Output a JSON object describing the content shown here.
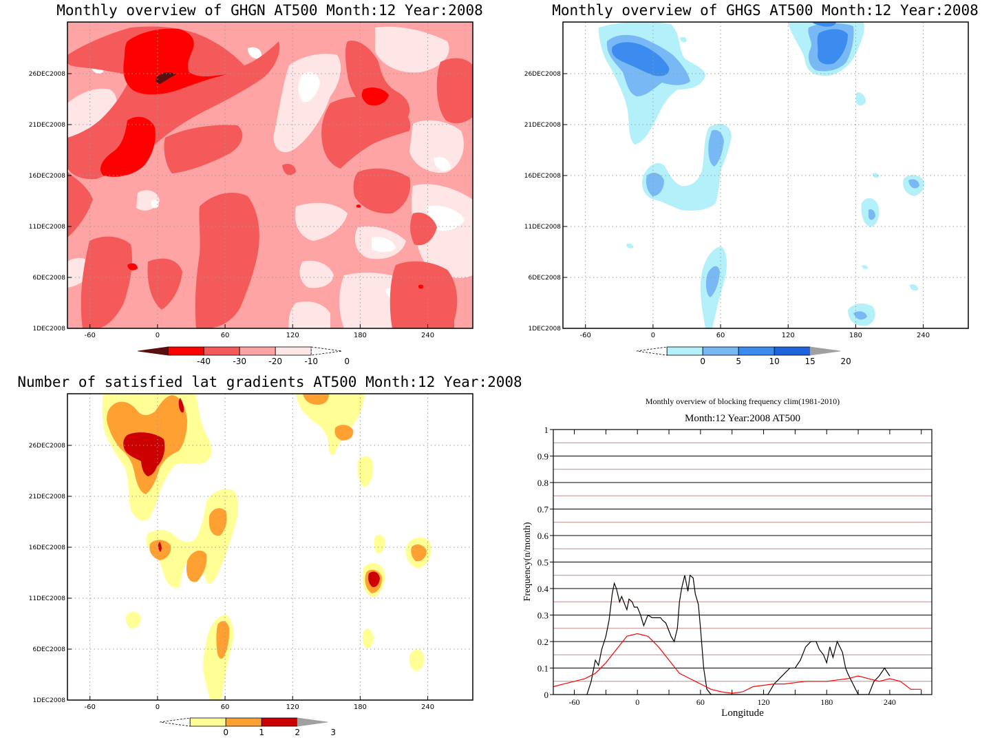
{
  "chart_data": [
    {
      "type": "heatmap",
      "title": "Monthly overview of GHGN AT500 Month:12 Year:2008",
      "y_ticks": [
        "26DEC2008",
        "21DEC2008",
        "16DEC2008",
        "11DEC2008",
        "6DEC2008",
        "1DEC2008"
      ],
      "x_ticks": [
        "-60",
        "0",
        "60",
        "120",
        "180",
        "240"
      ],
      "xlim": [
        -80,
        280
      ],
      "colorbar": {
        "ticks": [
          "-40",
          "-30",
          "-20",
          "-10",
          "0"
        ],
        "levels": [
          -40,
          -30,
          -20,
          -10,
          0
        ],
        "colors": [
          "#5a0f0f",
          "#ff0000",
          "#f45a5a",
          "#ffa4a4",
          "#ffe6e6",
          "#ffffff"
        ]
      },
      "colors": {
        "base": "#ffa4a4",
        "light": "#ffe6e6",
        "medium": "#f45a5a",
        "strong": "#ff0000",
        "darkest": "#5a0f0f"
      }
    },
    {
      "type": "heatmap",
      "title": "Monthly overview of GHGS AT500 Month:12 Year:2008",
      "y_ticks": [
        "26DEC2008",
        "21DEC2008",
        "16DEC2008",
        "11DEC2008",
        "6DEC2008",
        "1DEC2008"
      ],
      "x_ticks": [
        "-60",
        "0",
        "60",
        "120",
        "180",
        "240"
      ],
      "xlim": [
        -80,
        280
      ],
      "colorbar": {
        "ticks": [
          "0",
          "5",
          "10",
          "15",
          "20"
        ],
        "levels": [
          0,
          5,
          10,
          15,
          20
        ],
        "colors": [
          "#ffffff",
          "#b4f0fa",
          "#78b9f5",
          "#3c8cf0",
          "#1e64dc",
          "#a0a0a0"
        ]
      },
      "colors": {
        "light": "#b4f0fa",
        "medium": "#78b9f5",
        "strong": "#3c8cf0",
        "darkest": "#1e64dc"
      }
    },
    {
      "type": "heatmap",
      "title": "Number of satisfied lat gradients AT500 Month:12 Year:2008",
      "y_ticks": [
        "26DEC2008",
        "21DEC2008",
        "16DEC2008",
        "11DEC2008",
        "6DEC2008",
        "1DEC2008"
      ],
      "x_ticks": [
        "-60",
        "0",
        "60",
        "120",
        "180",
        "240"
      ],
      "xlim": [
        -80,
        280
      ],
      "colorbar": {
        "ticks": [
          "0",
          "1",
          "2",
          "3"
        ],
        "levels": [
          0,
          1,
          2,
          3
        ],
        "colors": [
          "#ffffff",
          "#ffff96",
          "#ffa033",
          "#cc0000",
          "#a0a0a0"
        ]
      },
      "colors": {
        "level1": "#ffff96",
        "level2": "#ffa033",
        "level3": "#cc0000"
      }
    },
    {
      "type": "line",
      "title": "Monthly overview of blocking frequency clim(1981-2010)",
      "subtitle": "Month:12 Year:2008  AT500",
      "xlabel": "Longitude",
      "ylabel": "Frequency(n/month)",
      "xlim": [
        -80,
        280
      ],
      "ylim": [
        0,
        1
      ],
      "x_ticks": [
        "-60",
        "0",
        "60",
        "120",
        "180",
        "240"
      ],
      "y_ticks": [
        "0",
        "0.1",
        "0.2",
        "0.3",
        "0.4",
        "0.5",
        "0.6",
        "0.7",
        "0.8",
        "0.9",
        "1"
      ],
      "series": [
        {
          "color": "#000000",
          "x": [
            -48,
            -44,
            -40,
            -37,
            -34,
            -30,
            -27,
            -24,
            -22,
            -20,
            -17,
            -15,
            -12,
            -10,
            -8,
            -5,
            -3,
            0,
            3,
            6,
            10,
            14,
            18,
            22,
            24,
            27,
            30,
            32,
            35,
            38,
            40,
            42,
            45,
            48,
            50,
            53,
            55,
            58,
            60,
            63,
            66,
            70,
            80,
            90,
            100,
            110,
            118,
            124,
            130,
            135,
            140,
            145,
            150,
            155,
            160,
            165,
            170,
            173,
            177,
            180,
            183,
            186,
            190,
            195,
            198,
            200,
            205,
            210,
            215,
            220,
            225,
            230,
            235,
            240
          ],
          "y": [
            0,
            0.05,
            0.13,
            0.11,
            0.17,
            0.22,
            0.28,
            0.38,
            0.42,
            0.4,
            0.35,
            0.37,
            0.34,
            0.32,
            0.36,
            0.35,
            0.33,
            0.33,
            0.3,
            0.26,
            0.3,
            0.29,
            0.29,
            0.29,
            0.28,
            0.27,
            0.24,
            0.22,
            0.2,
            0.25,
            0.35,
            0.4,
            0.45,
            0.39,
            0.45,
            0.44,
            0.38,
            0.34,
            0.25,
            0.1,
            0.02,
            0,
            0,
            0,
            0,
            0,
            0,
            0,
            0.04,
            0.06,
            0.08,
            0.1,
            0.1,
            0.13,
            0.18,
            0.2,
            0.2,
            0.17,
            0.15,
            0.12,
            0.18,
            0.14,
            0.2,
            0.16,
            0.1,
            0.08,
            0.04,
            0,
            0,
            0,
            0.05,
            0.07,
            0.1,
            0.07
          ]
        },
        {
          "color": "#ff0000",
          "x": [
            -80,
            -70,
            -60,
            -50,
            -40,
            -30,
            -20,
            -10,
            0,
            10,
            20,
            30,
            40,
            50,
            60,
            70,
            80,
            90,
            100,
            110,
            120,
            130,
            140,
            150,
            160,
            170,
            180,
            190,
            200,
            210,
            220,
            230,
            240,
            250,
            260,
            270
          ],
          "y": [
            0.03,
            0.04,
            0.05,
            0.06,
            0.08,
            0.12,
            0.17,
            0.22,
            0.23,
            0.22,
            0.18,
            0.13,
            0.08,
            0.06,
            0.04,
            0.02,
            0.01,
            0.005,
            0.01,
            0.03,
            0.035,
            0.04,
            0.04,
            0.045,
            0.05,
            0.05,
            0.05,
            0.055,
            0.06,
            0.07,
            0.06,
            0.05,
            0.06,
            0.05,
            0.02,
            0.02
          ]
        }
      ]
    }
  ]
}
